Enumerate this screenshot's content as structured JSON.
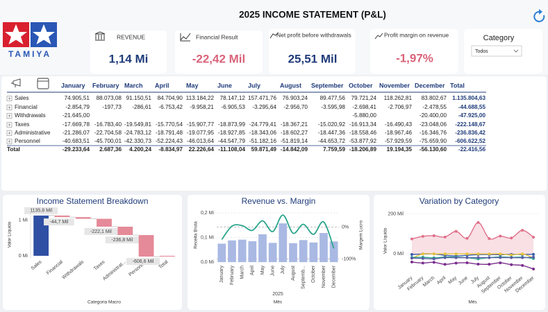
{
  "header": {
    "logo": "TAMIYA",
    "title": "2025 INCOME STATEMENT (P&L)"
  },
  "kpis": [
    {
      "label": "REVENUE",
      "value": "1,14 Mi"
    },
    {
      "label": "Financial Result",
      "value": "-22,42 Mil"
    },
    {
      "label": "Net profit before withdrawals",
      "value": "25,51 Mil"
    },
    {
      "label": "Profit margin on revenue",
      "value": "-1,97%"
    }
  ],
  "filter": {
    "label": "Category",
    "value": "Todos"
  },
  "table": {
    "columns": [
      "January",
      "February",
      "March",
      "April",
      "May",
      "June",
      "July",
      "August",
      "September",
      "October",
      "November",
      "December",
      "Total"
    ],
    "rows": [
      {
        "label": "Sales",
        "cells": [
          "74.905,51",
          "88.073,08",
          "91.150,51",
          "84.704,90",
          "113.184,22",
          "78.147,12",
          "157.471,76",
          "76.903,24",
          "89.477,56",
          "79.721,24",
          "118.262,81",
          "83.802,67",
          "1.135.804,63"
        ]
      },
      {
        "label": "Financial",
        "cells": [
          "-2.854,79",
          "-197,73",
          "-286,61",
          "-6.753,42",
          "-9.958,21",
          "-6.905,53",
          "-3.295,64",
          "-2.956,70",
          "-3.595,98",
          "-2.698,41",
          "-2.706,97",
          "-2.478,55",
          "-44.688,55"
        ]
      },
      {
        "label": "Withdrawals",
        "cells": [
          "-21.645,00",
          null,
          null,
          null,
          null,
          null,
          null,
          null,
          null,
          "-5.880,00",
          null,
          "-20.400,00",
          "-47.925,00"
        ]
      },
      {
        "label": "Taxes",
        "cells": [
          "-17.669,78",
          "-16.783,40",
          "-19.549,81",
          "-15.770,54",
          "-15.907,77",
          "-18.873,99",
          "-24.779,41",
          "-18.367,21",
          "-15.020,92",
          "-16.913,34",
          "-16.490,43",
          "-23.048,06",
          "-222.148,67"
        ]
      },
      {
        "label": "Administrative",
        "cells": [
          "-21.286,07",
          "-22.704,58",
          "-24.783,12",
          "-18.791,48",
          "-19.077,95",
          "-18.927,85",
          "-18.343,06",
          "-18.602,27",
          "-18.447,36",
          "-18.558,46",
          "-18.967,46",
          "-16.346,76",
          "-236.836,42"
        ]
      },
      {
        "label": "Personnel",
        "cells": [
          "-40.683,51",
          "-45.700,01",
          "-42.330,73",
          "-52.224,43",
          "-46.013,64",
          "-44.547,79",
          "-51.182,16",
          "-51.819,14",
          "-44.653,72",
          "-53.877,92",
          "-57.929,59",
          "-75.659,90",
          "-606.622,52"
        ]
      },
      {
        "label": "Total",
        "cells": [
          "-29.233,64",
          "2.687,36",
          "4.200,24",
          "-8.834,97",
          "22.226,64",
          "-11.108,04",
          "59.871,49",
          "-14.842,09",
          "7.759,59",
          "-18.206,89",
          "19.194,35",
          "-56.130,60",
          "-22.416,56"
        ]
      }
    ]
  },
  "chart_data": [
    {
      "type": "waterfall",
      "title": "Income Statement Breakdown",
      "x_label": "Categoria Macro",
      "y_label": "Valor Líquido",
      "categories": [
        "Sales",
        "Financial",
        "Withdrawals",
        "Taxes",
        "Administrat...",
        "Personnel",
        "Total"
      ],
      "values": [
        1135.8,
        -44.7,
        -47.9,
        -222.1,
        -236.8,
        -606.6,
        -22.4
      ],
      "value_labels": [
        "1135,8 Mil",
        "-44,7 Mil",
        null,
        "-222,1 Mil",
        "-236,8 Mil",
        "-606,6 Mil",
        null
      ],
      "colors": [
        "#2e4fa3",
        "#e58a98",
        "#e58a98",
        "#e58a98",
        "#e58a98",
        "#e58a98",
        "#e58a98"
      ],
      "ylim": [
        -60,
        1250
      ],
      "yticks": [
        {
          "value": 1000,
          "label": "1 Mi"
        },
        {
          "value": 0,
          "label": "0 Mi"
        }
      ]
    },
    {
      "type": "combo",
      "title": "Revenue vs. Margin",
      "x_label": "Mês",
      "x_group_label": "2025",
      "y_label": "Receita Bruta",
      "y2_label": "Margem Lucro",
      "categories": [
        "January",
        "February",
        "March",
        "April",
        "May",
        "June",
        "July",
        "August",
        "Septemb...",
        "October",
        "November",
        "December"
      ],
      "series": [
        {
          "type": "bar",
          "color": "#a9b9e3",
          "values": [
            0.0749,
            0.0881,
            0.0912,
            0.0847,
            0.1132,
            0.0781,
            0.1575,
            0.0769,
            0.0895,
            0.0797,
            0.1183,
            0.0838
          ]
        },
        {
          "type": "line",
          "axis": "y2",
          "color": "#2ca58d",
          "values": [
            -39.0,
            3.1,
            4.6,
            -10.4,
            19.6,
            -14.2,
            38.0,
            -19.3,
            8.7,
            -22.8,
            16.2,
            -67.0
          ]
        }
      ],
      "ylim": [
        0,
        0.22
      ],
      "yticks": [
        {
          "value": 0,
          "label": "0,0 Mi"
        },
        {
          "value": 0.1,
          "label": "0,1 Mi"
        },
        {
          "value": 0.2,
          "label": "0,2 Mi"
        }
      ],
      "y2lim": [
        -110,
        60
      ],
      "y2ticks": [
        {
          "value": 0,
          "label": "0%"
        },
        {
          "value": -100,
          "label": "-100%"
        }
      ]
    },
    {
      "type": "line",
      "title": "Variation by Category",
      "x_label": "Mês",
      "y_label": "Valor Líquido",
      "categories": [
        "January",
        "February",
        "March",
        "April",
        "May",
        "June",
        "July",
        "August",
        "September",
        "October",
        "November",
        "December"
      ],
      "series": [
        {
          "type": "area",
          "color": "#e0708a",
          "values": [
            74.9,
            88.1,
            91.2,
            84.7,
            113.2,
            78.1,
            157.5,
            76.9,
            89.5,
            79.7,
            118.3,
            83.8
          ]
        },
        {
          "type": "line",
          "color": "#3b5ba5",
          "values": [
            -2.9,
            -0.2,
            -0.3,
            -6.8,
            -10.0,
            -6.9,
            -3.3,
            -3.0,
            -3.6,
            -2.7,
            -2.7,
            -2.5
          ]
        },
        {
          "type": "line",
          "color": "#e8c33a",
          "values": [
            -21.6,
            0,
            0,
            0,
            0,
            0,
            0,
            0,
            0,
            -5.9,
            0,
            -20.4
          ]
        },
        {
          "type": "line",
          "color": "#2ca58d",
          "values": [
            -17.7,
            -16.8,
            -19.5,
            -15.8,
            -15.9,
            -18.9,
            -24.8,
            -18.4,
            -15.0,
            -16.9,
            -16.5,
            -23.0
          ]
        },
        {
          "type": "line",
          "color": "#5b5ea6",
          "values": [
            -21.3,
            -22.7,
            -24.8,
            -18.8,
            -19.1,
            -18.9,
            -18.3,
            -18.6,
            -18.4,
            -18.6,
            -19.0,
            -16.3
          ]
        },
        {
          "type": "line",
          "color": "#7b2d8e",
          "values": [
            -40.7,
            -45.7,
            -42.3,
            -52.2,
            -46.0,
            -44.5,
            -51.2,
            -51.8,
            -44.7,
            -53.9,
            -57.9,
            -75.7
          ]
        }
      ],
      "ylim": [
        -100,
        230
      ],
      "yticks": [
        {
          "value": 200,
          "label": "200 Mil"
        },
        {
          "value": 0,
          "label": "0 Mil"
        }
      ]
    }
  ]
}
